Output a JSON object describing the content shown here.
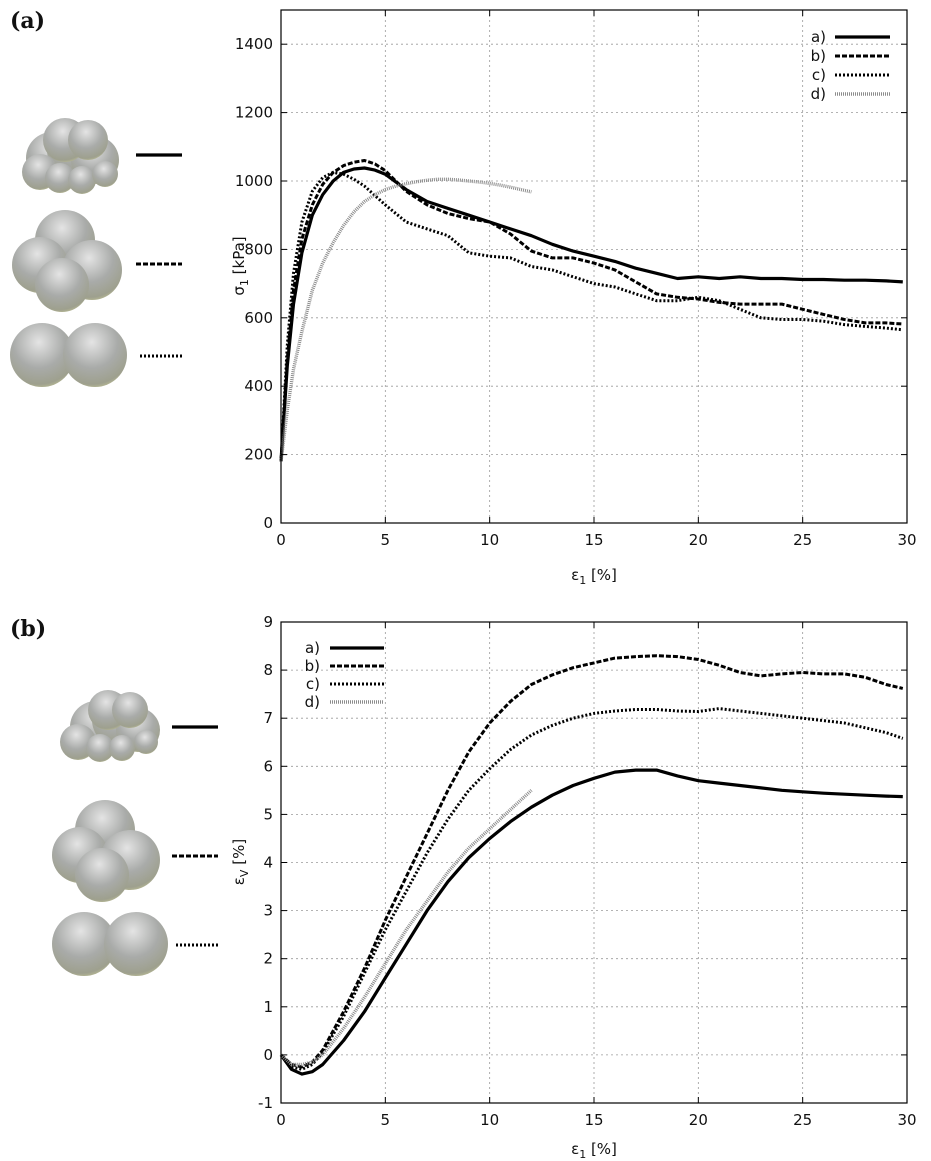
{
  "colors": {
    "line": "#000000",
    "d_series": "#8c8c8c",
    "grid": "#9a9a9a"
  },
  "chart_data": [
    {
      "panel": "(a)",
      "type": "line",
      "xlabel": {
        "base": "ε",
        "sub": "1",
        "rest": " [%]"
      },
      "ylabel": {
        "base": "σ",
        "sub": "1",
        "rest": " [kPa]"
      },
      "xlim": [
        0,
        30
      ],
      "ylim": [
        0,
        1500
      ],
      "xticks": [
        0,
        5,
        10,
        15,
        20,
        25,
        30
      ],
      "yticks": [
        0,
        200,
        400,
        600,
        800,
        1000,
        1200,
        1400
      ],
      "grid": true,
      "legend_position": "top-right",
      "series": [
        {
          "name": "a)",
          "style": "solid",
          "x": [
            0,
            0.3,
            0.6,
            1,
            1.5,
            2,
            2.5,
            3,
            3.5,
            4,
            4.5,
            5,
            6,
            7,
            8,
            9,
            10,
            11,
            12,
            13,
            14,
            15,
            16,
            17,
            18,
            19,
            20,
            21,
            22,
            23,
            24,
            25,
            26,
            27,
            28,
            29,
            29.8
          ],
          "y": [
            180,
            460,
            640,
            790,
            900,
            960,
            1000,
            1025,
            1035,
            1038,
            1032,
            1020,
            975,
            940,
            920,
            900,
            880,
            860,
            840,
            815,
            795,
            780,
            765,
            745,
            730,
            715,
            720,
            715,
            720,
            715,
            715,
            712,
            712,
            710,
            710,
            708,
            705
          ]
        },
        {
          "name": "b)",
          "style": "dashed",
          "x": [
            0,
            0.3,
            0.6,
            1,
            1.5,
            2,
            2.5,
            3,
            3.5,
            4,
            4.5,
            5,
            6,
            7,
            8,
            9,
            10,
            11,
            12,
            13,
            14,
            15,
            16,
            17,
            18,
            19,
            20,
            21,
            22,
            23,
            24,
            25,
            26,
            27,
            28,
            29,
            29.8
          ],
          "y": [
            180,
            480,
            680,
            830,
            930,
            990,
            1025,
            1045,
            1055,
            1060,
            1050,
            1030,
            970,
            930,
            905,
            890,
            880,
            845,
            795,
            775,
            775,
            760,
            740,
            705,
            670,
            660,
            655,
            645,
            640,
            640,
            640,
            625,
            610,
            595,
            585,
            585,
            582
          ]
        },
        {
          "name": "c)",
          "style": "dotted",
          "x": [
            0,
            0.3,
            0.6,
            1,
            1.5,
            2,
            2.5,
            3,
            3.5,
            4,
            5,
            6,
            7,
            8,
            9,
            10,
            11,
            12,
            13,
            14,
            15,
            16,
            17,
            18,
            19,
            20,
            21,
            22,
            23,
            24,
            25,
            26,
            27,
            28,
            29,
            29.8
          ],
          "y": [
            180,
            520,
            730,
            880,
            970,
            1010,
            1025,
            1020,
            1005,
            985,
            930,
            880,
            860,
            840,
            790,
            780,
            775,
            750,
            740,
            720,
            700,
            690,
            670,
            650,
            650,
            660,
            650,
            625,
            600,
            595,
            595,
            590,
            580,
            575,
            570,
            565
          ]
        },
        {
          "name": "d)",
          "style": "fine-dotted",
          "color": "#8c8c8c",
          "x": [
            0,
            0.3,
            0.6,
            1,
            1.5,
            2,
            2.5,
            3,
            3.5,
            4,
            4.5,
            5,
            5.5,
            6,
            6.5,
            7,
            7.5,
            8,
            8.5,
            9,
            9.5,
            10,
            10.5,
            11,
            11.5,
            12
          ],
          "y": [
            180,
            330,
            450,
            560,
            680,
            760,
            820,
            870,
            910,
            940,
            960,
            975,
            985,
            992,
            998,
            1002,
            1005,
            1005,
            1003,
            1000,
            997,
            993,
            988,
            982,
            975,
            968
          ]
        }
      ]
    },
    {
      "panel": "(b)",
      "type": "line",
      "xlabel": {
        "base": "ε",
        "sub": "1",
        "rest": " [%]"
      },
      "ylabel": {
        "base": "ε",
        "sub": "V",
        "rest": " [%]"
      },
      "xlim": [
        0,
        30
      ],
      "ylim": [
        -1,
        9
      ],
      "xticks": [
        0,
        5,
        10,
        15,
        20,
        25,
        30
      ],
      "yticks": [
        -1,
        0,
        1,
        2,
        3,
        4,
        5,
        6,
        7,
        8,
        9
      ],
      "grid": true,
      "legend_position": "top-left",
      "series": [
        {
          "name": "a)",
          "style": "solid",
          "x": [
            0,
            0.5,
            1,
            1.5,
            2,
            3,
            4,
            5,
            6,
            7,
            8,
            9,
            10,
            11,
            12,
            13,
            14,
            15,
            16,
            17,
            18,
            19,
            20,
            21,
            22,
            23,
            24,
            25,
            26,
            27,
            28,
            29,
            29.8
          ],
          "y": [
            0,
            -0.3,
            -0.4,
            -0.35,
            -0.2,
            0.3,
            0.9,
            1.6,
            2.3,
            3.0,
            3.6,
            4.1,
            4.5,
            4.85,
            5.15,
            5.4,
            5.6,
            5.75,
            5.88,
            5.92,
            5.92,
            5.8,
            5.7,
            5.65,
            5.6,
            5.55,
            5.5,
            5.47,
            5.44,
            5.42,
            5.4,
            5.38,
            5.37
          ]
        },
        {
          "name": "b)",
          "style": "dashed",
          "x": [
            0,
            0.5,
            1,
            1.5,
            2,
            3,
            4,
            5,
            6,
            7,
            8,
            9,
            10,
            11,
            12,
            13,
            14,
            15,
            16,
            17,
            18,
            19,
            20,
            21,
            22,
            23,
            24,
            25,
            26,
            27,
            28,
            29,
            29.8
          ],
          "y": [
            0,
            -0.2,
            -0.25,
            -0.15,
            0.1,
            0.9,
            1.8,
            2.8,
            3.7,
            4.6,
            5.5,
            6.3,
            6.9,
            7.35,
            7.7,
            7.9,
            8.05,
            8.15,
            8.25,
            8.28,
            8.3,
            8.28,
            8.22,
            8.1,
            7.95,
            7.88,
            7.92,
            7.95,
            7.92,
            7.92,
            7.85,
            7.7,
            7.62
          ]
        },
        {
          "name": "c)",
          "style": "dotted",
          "x": [
            0,
            0.5,
            1,
            1.5,
            2,
            3,
            4,
            5,
            6,
            7,
            8,
            9,
            10,
            11,
            12,
            13,
            14,
            15,
            16,
            17,
            18,
            19,
            20,
            21,
            22,
            23,
            24,
            25,
            26,
            27,
            28,
            29,
            29.8
          ],
          "y": [
            0,
            -0.25,
            -0.3,
            -0.2,
            0.05,
            0.8,
            1.7,
            2.6,
            3.4,
            4.2,
            4.9,
            5.5,
            5.95,
            6.35,
            6.65,
            6.85,
            7.0,
            7.1,
            7.15,
            7.18,
            7.18,
            7.15,
            7.14,
            7.2,
            7.15,
            7.1,
            7.05,
            7.0,
            6.95,
            6.9,
            6.8,
            6.7,
            6.58
          ]
        },
        {
          "name": "d)",
          "style": "fine-dotted",
          "color": "#8c8c8c",
          "x": [
            0,
            0.5,
            1,
            1.5,
            2,
            3,
            4,
            5,
            6,
            7,
            8,
            9,
            10,
            11,
            12
          ],
          "y": [
            0,
            -0.2,
            -0.2,
            -0.15,
            0,
            0.55,
            1.2,
            1.9,
            2.6,
            3.2,
            3.8,
            4.3,
            4.7,
            5.1,
            5.5
          ]
        }
      ]
    }
  ]
}
